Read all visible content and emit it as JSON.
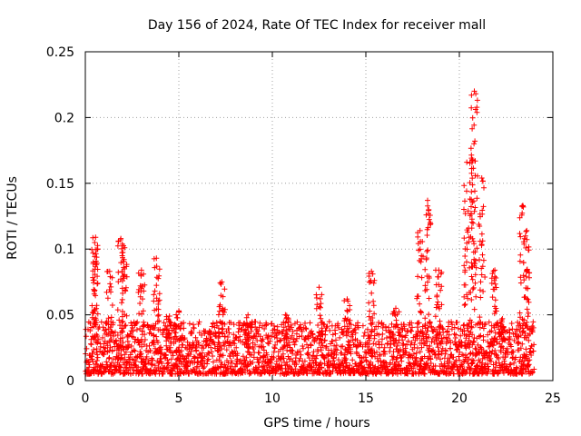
{
  "chart_data": {
    "type": "scatter",
    "title": "Day 156 of 2024, Rate Of TEC Index for receiver mall",
    "xlabel": "GPS time / hours",
    "ylabel": "ROTI / TECUs",
    "xlim": [
      0,
      25
    ],
    "ylim": [
      0,
      0.25
    ],
    "xticks": [
      0,
      5,
      10,
      15,
      20,
      25
    ],
    "xtick_labels": [
      "0",
      "5",
      "10",
      "15",
      "20",
      "25"
    ],
    "yticks": [
      0,
      0.05,
      0.1,
      0.15,
      0.2,
      0.25
    ],
    "ytick_labels": [
      "0",
      "0.05",
      "0.1",
      "0.15",
      "0.2",
      "0.25"
    ],
    "grid": true,
    "marker": "+",
    "color": "#ff0000",
    "series": [
      {
        "name": "ROTI",
        "x_range": [
          0,
          24
        ],
        "baseline_range": [
          0.005,
          0.045
        ],
        "peaks": [
          {
            "x": 0.55,
            "y": 0.109
          },
          {
            "x": 0.5,
            "y": 0.105
          },
          {
            "x": 1.3,
            "y": 0.083
          },
          {
            "x": 1.9,
            "y": 0.108
          },
          {
            "x": 2.1,
            "y": 0.101
          },
          {
            "x": 3.0,
            "y": 0.084
          },
          {
            "x": 3.8,
            "y": 0.093
          },
          {
            "x": 4.5,
            "y": 0.049
          },
          {
            "x": 5.0,
            "y": 0.053
          },
          {
            "x": 7.3,
            "y": 0.075
          },
          {
            "x": 8.7,
            "y": 0.05
          },
          {
            "x": 10.7,
            "y": 0.05
          },
          {
            "x": 12.5,
            "y": 0.071
          },
          {
            "x": 14.0,
            "y": 0.062
          },
          {
            "x": 15.3,
            "y": 0.083
          },
          {
            "x": 16.6,
            "y": 0.055
          },
          {
            "x": 17.9,
            "y": 0.114
          },
          {
            "x": 18.3,
            "y": 0.137
          },
          {
            "x": 18.9,
            "y": 0.084
          },
          {
            "x": 20.4,
            "y": 0.166
          },
          {
            "x": 20.7,
            "y": 0.168
          },
          {
            "x": 20.8,
            "y": 0.22
          },
          {
            "x": 21.2,
            "y": 0.154
          },
          {
            "x": 21.9,
            "y": 0.084
          },
          {
            "x": 22.3,
            "y": 0.047
          },
          {
            "x": 23.4,
            "y": 0.133
          },
          {
            "x": 23.6,
            "y": 0.114
          }
        ]
      }
    ]
  }
}
